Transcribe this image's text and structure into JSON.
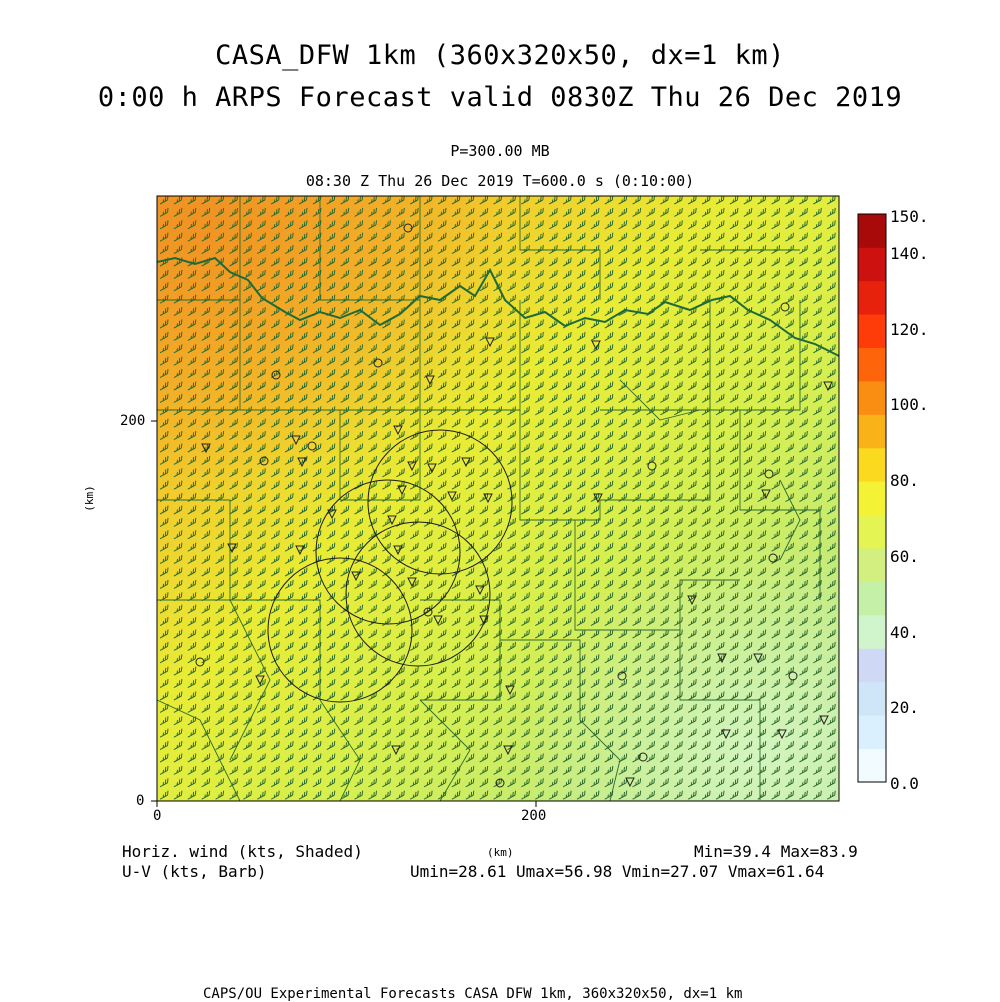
{
  "header": {
    "title_line1": "CASA_DFW 1km (360x320x50, dx=1 km)",
    "title_line2": "0:00 h ARPS Forecast valid 0830Z Thu 26 Dec 2019",
    "pressure": "P=300.00 MB",
    "time_line": "08:30 Z Thu 26 Dec 2019    T=600.0 s (0:10:00)"
  },
  "axes": {
    "x_label": "(km)",
    "y_label": "(km)",
    "x_ticks": [
      "0",
      "200"
    ],
    "y_ticks": [
      "0",
      "200"
    ],
    "x_range": [
      0,
      360
    ],
    "y_range": [
      0,
      320
    ]
  },
  "colorbar": {
    "labels": [
      "150.",
      "140.",
      "120.",
      "100.",
      "80.",
      "60.",
      "40.",
      "20.",
      "0.0"
    ],
    "colors": [
      "#f2fbff",
      "#dbf0ff",
      "#cfe6f8",
      "#cfd8f5",
      "#d0f5cc",
      "#c4f0a8",
      "#d2ef80",
      "#e4f553",
      "#f4f234",
      "#fbd91e",
      "#f9b319",
      "#f98e12",
      "#fe650a",
      "#fe3c0a",
      "#e6220c",
      "#cc110e",
      "#a80a0a"
    ]
  },
  "footer": {
    "left_line1": "Horiz. wind (kts, Shaded)",
    "left_line2": "U-V (kts, Barb)",
    "center": "(km)",
    "right_line1": "Min=39.4 Max=83.9",
    "right_line2": "Umin=28.61 Umax=56.98 Vmin=27.07 Vmax=61.64",
    "credit": "CAPS/OU Experimental Forecasts  CASA DFW 1km, 360x320x50, dx=1 km"
  },
  "map_data": {
    "field": "horizontal wind speed (kts)",
    "min": 39.4,
    "max": 83.9,
    "umin": 28.61,
    "umax": 56.98,
    "vmin": 27.07,
    "vmax": 61.64,
    "max_region": "northwest",
    "min_region": "southeast",
    "barb_direction": "southwesterly"
  }
}
